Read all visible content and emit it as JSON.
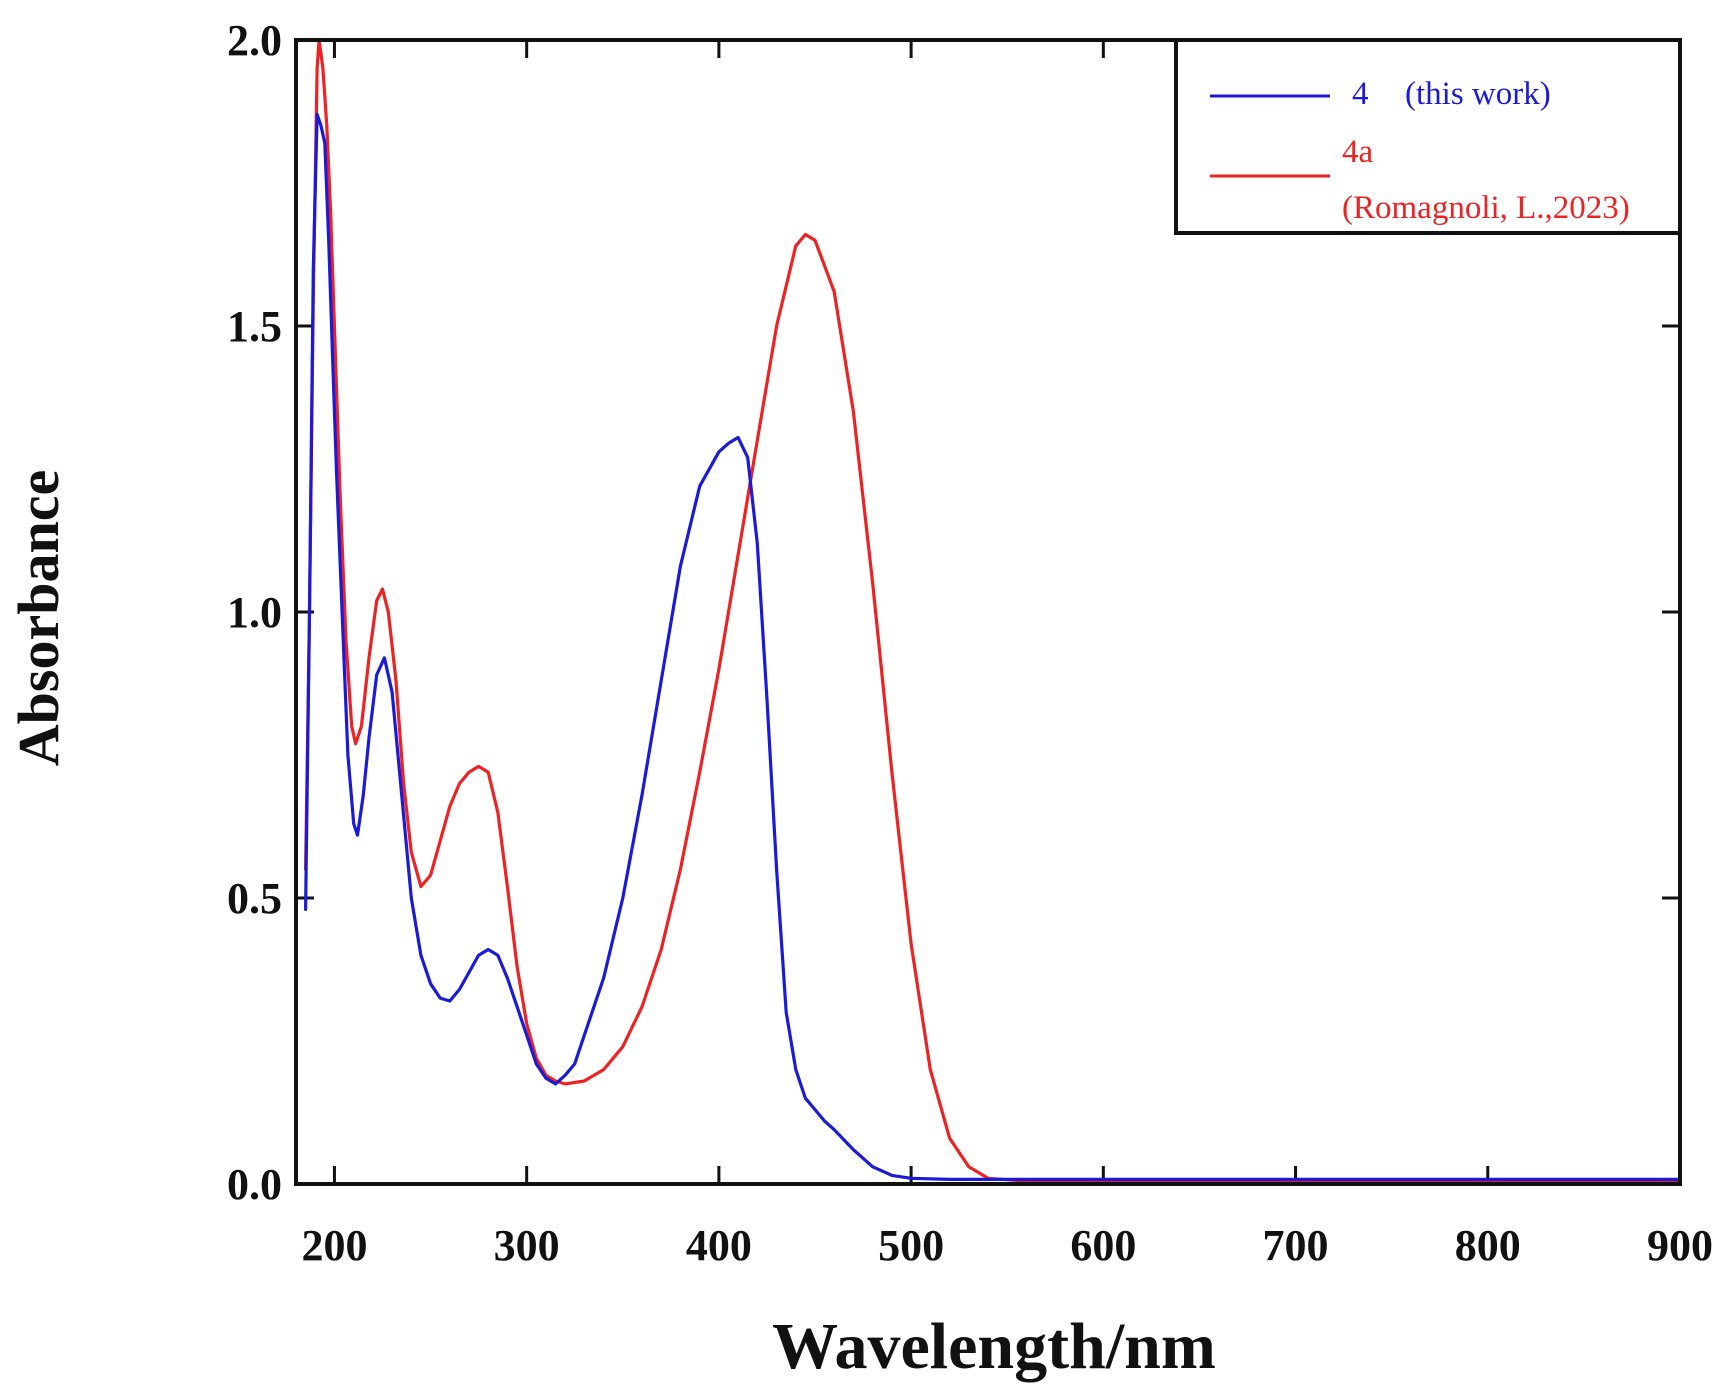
{
  "chart_data": {
    "type": "line",
    "title": "",
    "xlabel": "Wavelength/nm",
    "ylabel": "Absorbance",
    "xlim": [
      180,
      900
    ],
    "ylim": [
      0,
      2.0
    ],
    "grid": false,
    "legend_position": "top-right",
    "x_ticks": [
      {
        "value": 200,
        "label": "200"
      },
      {
        "value": 300,
        "label": "300"
      },
      {
        "value": 400,
        "label": "400"
      },
      {
        "value": 500,
        "label": "500"
      },
      {
        "value": 600,
        "label": "600"
      },
      {
        "value": 700,
        "label": "700"
      },
      {
        "value": 800,
        "label": "800"
      },
      {
        "value": 900,
        "label": "900"
      }
    ],
    "y_ticks": [
      {
        "value": 0.0,
        "label": "0.0"
      },
      {
        "value": 0.5,
        "label": "0.5"
      },
      {
        "value": 1.0,
        "label": "1.0"
      },
      {
        "value": 1.5,
        "label": "1.5"
      },
      {
        "value": 2.0,
        "label": "2.0"
      }
    ],
    "series": [
      {
        "name": "4",
        "legend_label": "4",
        "legend_note": "(this work)",
        "color": "#1a1ad9",
        "points": [
          [
            185,
            0.48
          ],
          [
            187,
            1.0
          ],
          [
            189,
            1.6
          ],
          [
            191,
            1.87
          ],
          [
            193,
            1.85
          ],
          [
            195,
            1.82
          ],
          [
            197,
            1.65
          ],
          [
            199,
            1.45
          ],
          [
            201,
            1.25
          ],
          [
            204,
            1.0
          ],
          [
            207,
            0.75
          ],
          [
            210,
            0.63
          ],
          [
            212,
            0.61
          ],
          [
            215,
            0.68
          ],
          [
            218,
            0.78
          ],
          [
            222,
            0.89
          ],
          [
            226,
            0.92
          ],
          [
            230,
            0.86
          ],
          [
            235,
            0.68
          ],
          [
            240,
            0.5
          ],
          [
            245,
            0.4
          ],
          [
            250,
            0.35
          ],
          [
            255,
            0.325
          ],
          [
            260,
            0.32
          ],
          [
            265,
            0.34
          ],
          [
            270,
            0.37
          ],
          [
            275,
            0.4
          ],
          [
            280,
            0.41
          ],
          [
            285,
            0.4
          ],
          [
            290,
            0.36
          ],
          [
            295,
            0.31
          ],
          [
            300,
            0.26
          ],
          [
            305,
            0.21
          ],
          [
            310,
            0.185
          ],
          [
            315,
            0.175
          ],
          [
            320,
            0.19
          ],
          [
            325,
            0.21
          ],
          [
            330,
            0.26
          ],
          [
            340,
            0.36
          ],
          [
            350,
            0.5
          ],
          [
            360,
            0.68
          ],
          [
            370,
            0.88
          ],
          [
            380,
            1.08
          ],
          [
            390,
            1.22
          ],
          [
            400,
            1.28
          ],
          [
            405,
            1.295
          ],
          [
            410,
            1.305
          ],
          [
            415,
            1.27
          ],
          [
            420,
            1.12
          ],
          [
            425,
            0.85
          ],
          [
            430,
            0.55
          ],
          [
            435,
            0.3
          ],
          [
            440,
            0.2
          ],
          [
            445,
            0.15
          ],
          [
            450,
            0.13
          ],
          [
            455,
            0.11
          ],
          [
            460,
            0.095
          ],
          [
            470,
            0.06
          ],
          [
            480,
            0.03
          ],
          [
            490,
            0.015
          ],
          [
            500,
            0.01
          ],
          [
            520,
            0.008
          ],
          [
            560,
            0.008
          ],
          [
            600,
            0.008
          ],
          [
            700,
            0.008
          ],
          [
            800,
            0.008
          ],
          [
            900,
            0.008
          ]
        ]
      },
      {
        "name": "4a",
        "legend_label": "4a",
        "legend_note": "(Romagnoli, L.,2023)",
        "color": "#ee2222",
        "points": [
          [
            185,
            0.55
          ],
          [
            187,
            1.0
          ],
          [
            189,
            1.55
          ],
          [
            191,
            1.95
          ],
          [
            192,
            2.0
          ],
          [
            194,
            1.95
          ],
          [
            196,
            1.85
          ],
          [
            198,
            1.7
          ],
          [
            200,
            1.5
          ],
          [
            203,
            1.2
          ],
          [
            206,
            0.95
          ],
          [
            209,
            0.8
          ],
          [
            211,
            0.77
          ],
          [
            214,
            0.8
          ],
          [
            218,
            0.92
          ],
          [
            222,
            1.02
          ],
          [
            225,
            1.04
          ],
          [
            228,
            1.0
          ],
          [
            232,
            0.88
          ],
          [
            236,
            0.7
          ],
          [
            240,
            0.58
          ],
          [
            245,
            0.52
          ],
          [
            250,
            0.54
          ],
          [
            255,
            0.6
          ],
          [
            260,
            0.66
          ],
          [
            265,
            0.7
          ],
          [
            270,
            0.72
          ],
          [
            275,
            0.73
          ],
          [
            280,
            0.72
          ],
          [
            285,
            0.65
          ],
          [
            290,
            0.52
          ],
          [
            295,
            0.38
          ],
          [
            300,
            0.28
          ],
          [
            305,
            0.22
          ],
          [
            310,
            0.19
          ],
          [
            315,
            0.18
          ],
          [
            320,
            0.175
          ],
          [
            330,
            0.18
          ],
          [
            340,
            0.2
          ],
          [
            350,
            0.24
          ],
          [
            360,
            0.31
          ],
          [
            370,
            0.41
          ],
          [
            380,
            0.55
          ],
          [
            390,
            0.72
          ],
          [
            400,
            0.9
          ],
          [
            410,
            1.1
          ],
          [
            420,
            1.3
          ],
          [
            430,
            1.5
          ],
          [
            440,
            1.64
          ],
          [
            445,
            1.66
          ],
          [
            450,
            1.65
          ],
          [
            460,
            1.56
          ],
          [
            470,
            1.35
          ],
          [
            480,
            1.05
          ],
          [
            490,
            0.72
          ],
          [
            500,
            0.42
          ],
          [
            510,
            0.2
          ],
          [
            520,
            0.08
          ],
          [
            530,
            0.03
          ],
          [
            540,
            0.01
          ],
          [
            560,
            0.005
          ],
          [
            580,
            0.003
          ],
          [
            600,
            0.003
          ],
          [
            700,
            0.003
          ],
          [
            800,
            0.003
          ],
          [
            900,
            0.003
          ]
        ]
      }
    ]
  }
}
